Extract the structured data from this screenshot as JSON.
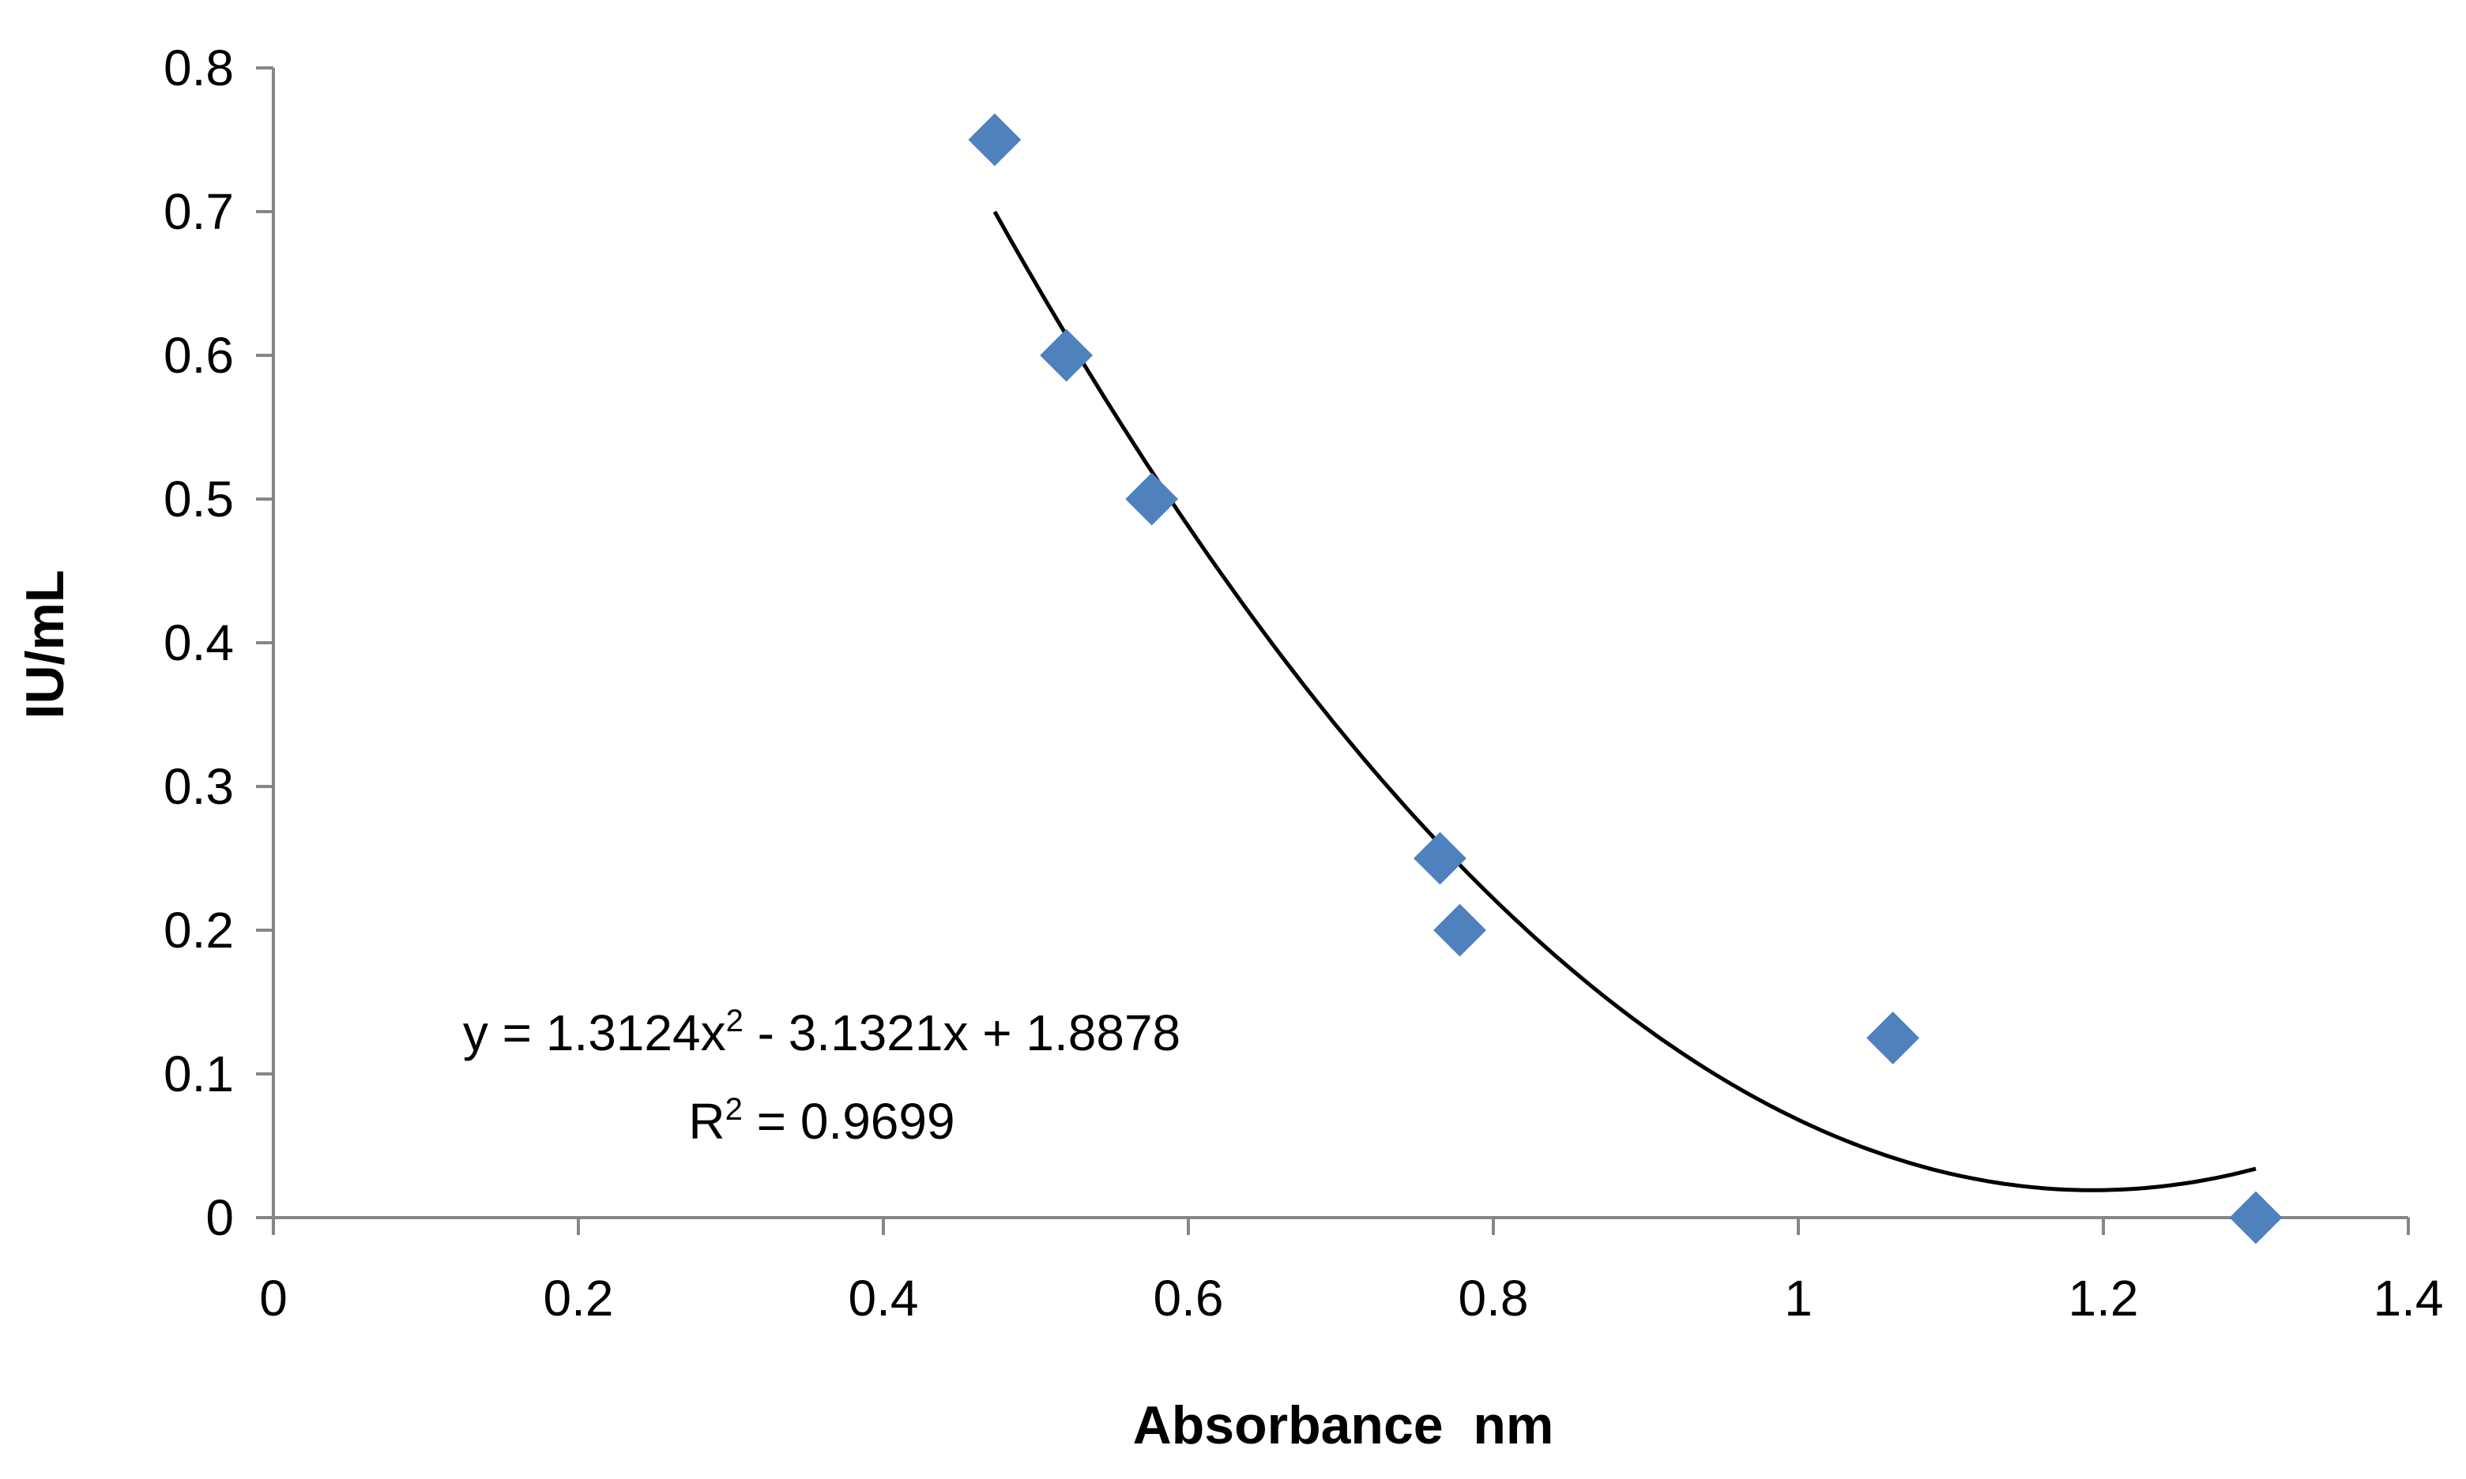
{
  "chart_data": {
    "type": "scatter",
    "title": "",
    "xlabel": "Absorbance  nm",
    "ylabel": "IU/mL",
    "xlim": [
      0,
      1.4
    ],
    "ylim": [
      0,
      0.8
    ],
    "xticks": [
      0,
      0.2,
      0.4,
      0.6,
      0.8,
      1.0,
      1.2,
      1.4
    ],
    "xtick_labels": [
      "0",
      "0.2",
      "0.4",
      "0.6",
      "0.8",
      "1",
      "1.2",
      "1.4"
    ],
    "yticks": [
      0,
      0.1,
      0.2,
      0.3,
      0.4,
      0.5,
      0.6,
      0.7,
      0.8
    ],
    "ytick_labels": [
      "0",
      "0.1",
      "0.2",
      "0.3",
      "0.4",
      "0.5",
      "0.6",
      "0.7",
      "0.8"
    ],
    "grid": false,
    "legend": "none",
    "series": [
      {
        "name": "IU/mL",
        "marker": "diamond",
        "color": "#4F81BD",
        "x": [
          0.473,
          0.52,
          0.576,
          0.765,
          0.778,
          1.062,
          1.3
        ],
        "y": [
          0.75,
          0.6,
          0.5,
          0.25,
          0.2,
          0.125,
          0.0
        ]
      }
    ],
    "trendline": {
      "type": "polynomial",
      "order": 2,
      "coefficients": [
        1.3124,
        -3.1321,
        1.8878
      ],
      "x_range": [
        0.473,
        1.3
      ],
      "color": "#000000",
      "equation_text": {
        "prefix": "y = 1.3124x",
        "exp": "2",
        "suffix": " - 3.1321x + 1.8878"
      },
      "r2_text": {
        "prefix": "R",
        "exp": "2",
        "suffix": " = 0.9699"
      }
    }
  }
}
